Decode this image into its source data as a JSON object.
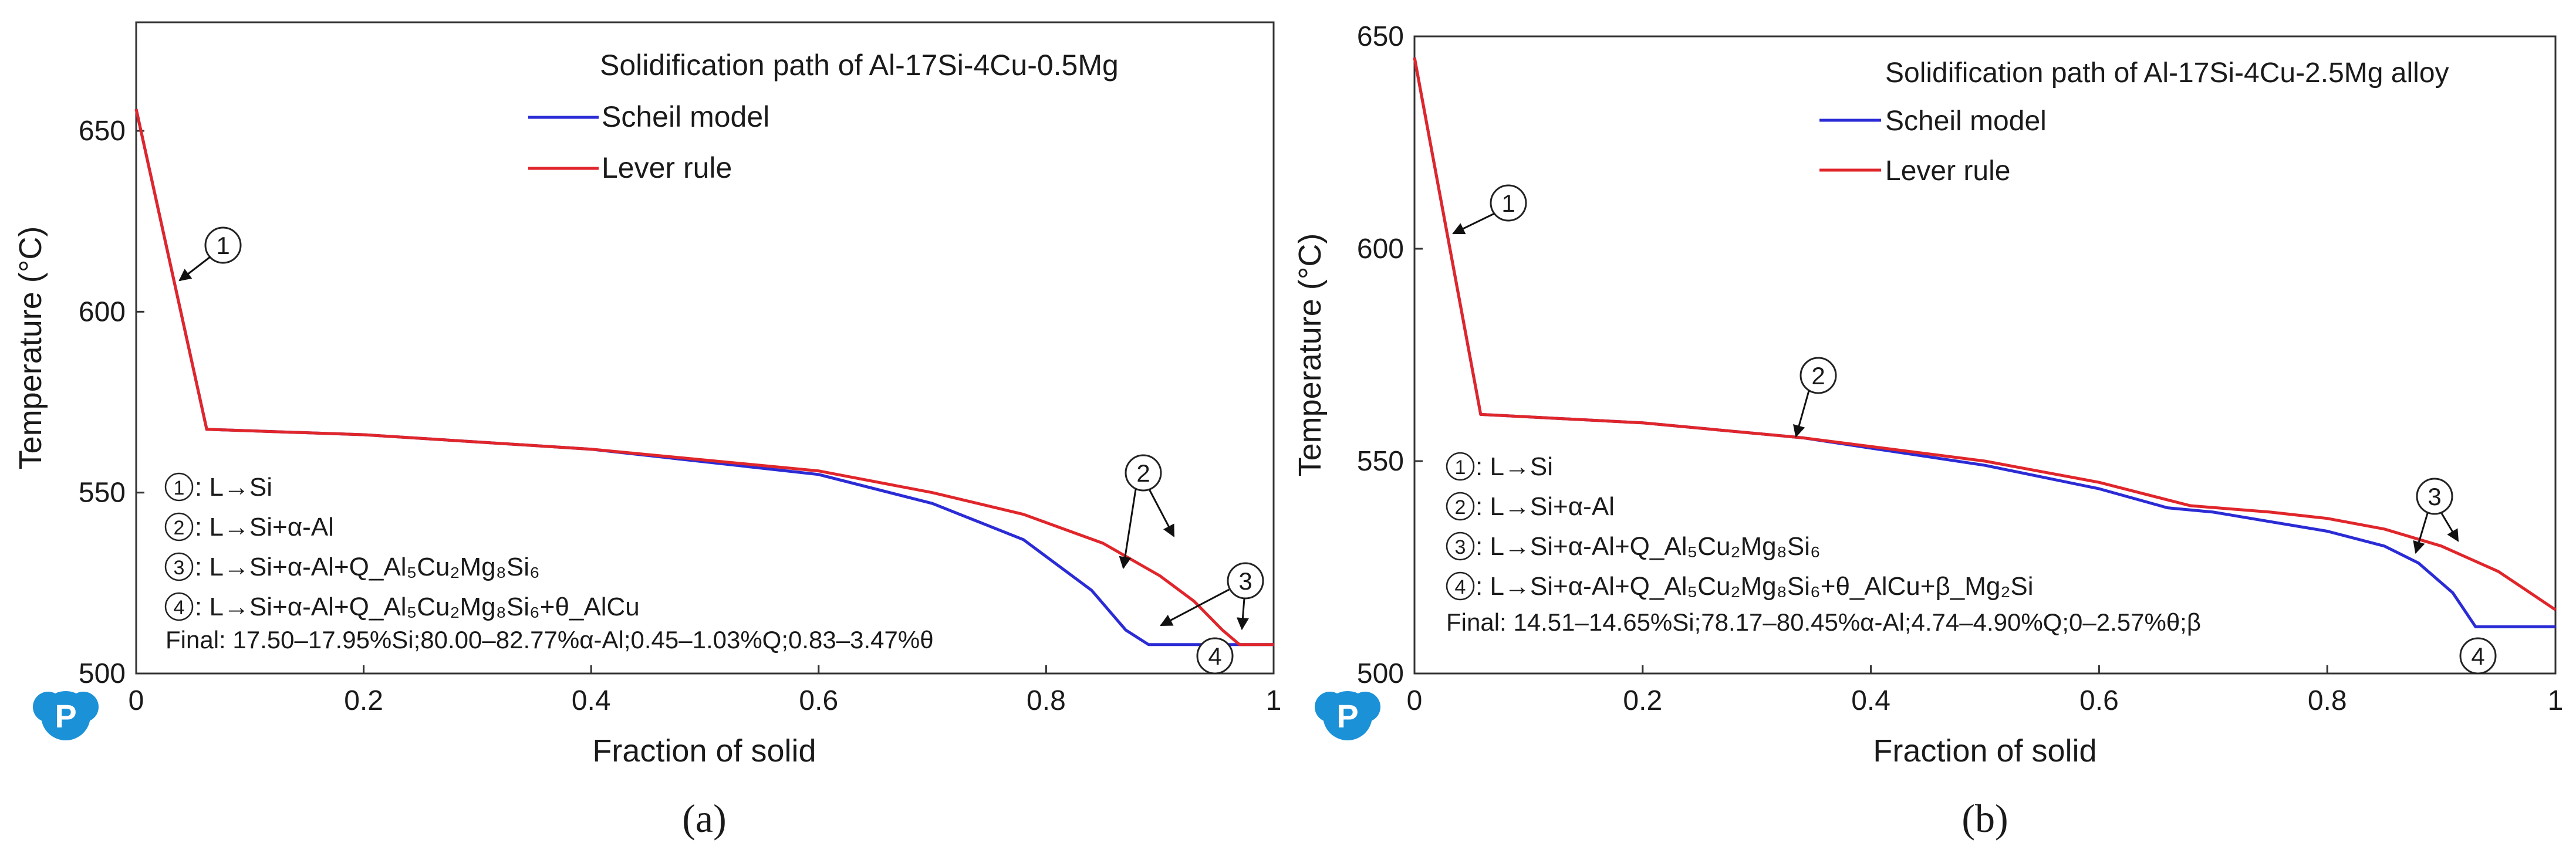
{
  "chart_data": [
    {
      "type": "line",
      "panel_label": "(a)",
      "title": "Solidification path of Al-17Si-4Cu-0.5Mg",
      "xlabel": "Fraction of solid",
      "ylabel": "Temperature (°C)",
      "xlim": [
        0,
        1
      ],
      "ylim": [
        500,
        680
      ],
      "x_ticks": [
        0,
        0.2,
        0.4,
        0.6,
        0.8,
        1
      ],
      "x_tick_labels": [
        "0",
        "0.2",
        "0.4",
        "0.6",
        "0.8",
        "1"
      ],
      "y_ticks": [
        500,
        550,
        600,
        650
      ],
      "y_tick_labels": [
        "500",
        "550",
        "600",
        "650"
      ],
      "legend": [
        {
          "name": "Scheil model",
          "color": "#2b2bd6"
        },
        {
          "name": "Lever rule",
          "color": "#e0262b"
        }
      ],
      "series": [
        {
          "name": "Scheil model",
          "color": "#2b2bd6",
          "x": [
            0,
            0.062,
            0.2,
            0.4,
            0.6,
            0.7,
            0.78,
            0.84,
            0.87,
            0.89,
            0.905,
            1.0
          ],
          "y": [
            656,
            567.5,
            566,
            562,
            555,
            547,
            537,
            523,
            512,
            508,
            508,
            508
          ]
        },
        {
          "name": "Lever rule",
          "color": "#e0262b",
          "x": [
            0,
            0.062,
            0.2,
            0.4,
            0.6,
            0.7,
            0.78,
            0.85,
            0.9,
            0.93,
            0.955,
            0.97,
            1.0
          ],
          "y": [
            656,
            567.5,
            566,
            562,
            556,
            550,
            544,
            536,
            527,
            520,
            512,
            508,
            508
          ]
        }
      ],
      "markers": [
        {
          "num": "1",
          "label": "①"
        },
        {
          "num": "2",
          "label": "②"
        },
        {
          "num": "3",
          "label": "③"
        },
        {
          "num": "4",
          "label": "④"
        }
      ],
      "annotation_lines": [
        {
          "num": "①",
          "text": ": L→Si"
        },
        {
          "num": "②",
          "text": ": L→Si+α-Al"
        },
        {
          "num": "③",
          "text": ": L→Si+α-Al+Q_Al₅Cu₂Mg₈Si₆"
        },
        {
          "num": "④",
          "text": ": L→Si+α-Al+Q_Al₅Cu₂Mg₈Si₆+θ_AlCu"
        }
      ],
      "final_text": "Final: 17.50–17.95%Si;80.00–82.77%α-Al;0.45–1.03%Q;0.83–3.47%θ"
    },
    {
      "type": "line",
      "panel_label": "(b)",
      "title": "Solidification path of Al-17Si-4Cu-2.5Mg alloy",
      "xlabel": "Fraction of solid",
      "ylabel": "Temperature (°C)",
      "xlim": [
        0,
        1
      ],
      "ylim": [
        500,
        650
      ],
      "x_ticks": [
        0,
        0.2,
        0.4,
        0.6,
        0.8,
        1
      ],
      "x_tick_labels": [
        "0",
        "0.2",
        "0.4",
        "0.6",
        "0.8",
        "1"
      ],
      "y_ticks": [
        500,
        550,
        600,
        650
      ],
      "y_tick_labels": [
        "500",
        "550",
        "600",
        "650"
      ],
      "legend": [
        {
          "name": "Scheil model",
          "color": "#2b2bd6"
        },
        {
          "name": "Lever rule",
          "color": "#e0262b"
        }
      ],
      "series": [
        {
          "name": "Scheil model",
          "color": "#2b2bd6",
          "x": [
            0,
            0.058,
            0.2,
            0.34,
            0.5,
            0.6,
            0.66,
            0.7,
            0.8,
            0.85,
            0.88,
            0.91,
            0.93,
            1.0
          ],
          "y": [
            645,
            561,
            559,
            555.5,
            549,
            543.5,
            539,
            538,
            533.5,
            530,
            526,
            519,
            511,
            511
          ]
        },
        {
          "name": "Lever rule",
          "color": "#e0262b",
          "x": [
            0,
            0.058,
            0.2,
            0.34,
            0.5,
            0.6,
            0.68,
            0.75,
            0.8,
            0.85,
            0.9,
            0.95,
            1.0
          ],
          "y": [
            645,
            561,
            559,
            555.5,
            550,
            545,
            539.5,
            538,
            536.5,
            534,
            530,
            524,
            515
          ]
        }
      ],
      "markers": [
        {
          "num": "1",
          "label": "①"
        },
        {
          "num": "2",
          "label": "②"
        },
        {
          "num": "3",
          "label": "③"
        },
        {
          "num": "4",
          "label": "④"
        }
      ],
      "annotation_lines": [
        {
          "num": "①",
          "text": ": L→Si"
        },
        {
          "num": "②",
          "text": ": L→Si+α-Al"
        },
        {
          "num": "③",
          "text": ": L→Si+α-Al+Q_Al₅Cu₂Mg₈Si₆"
        },
        {
          "num": "④",
          "text": ": L→Si+α-Al+Q_Al₅Cu₂Mg₈Si₆+θ_AlCu+β_Mg₂Si"
        }
      ],
      "final_text": "Final: 14.51–14.65%Si;78.17–80.45%α-Al;4.74–4.90%Q;0–2.57%θ;β"
    }
  ]
}
